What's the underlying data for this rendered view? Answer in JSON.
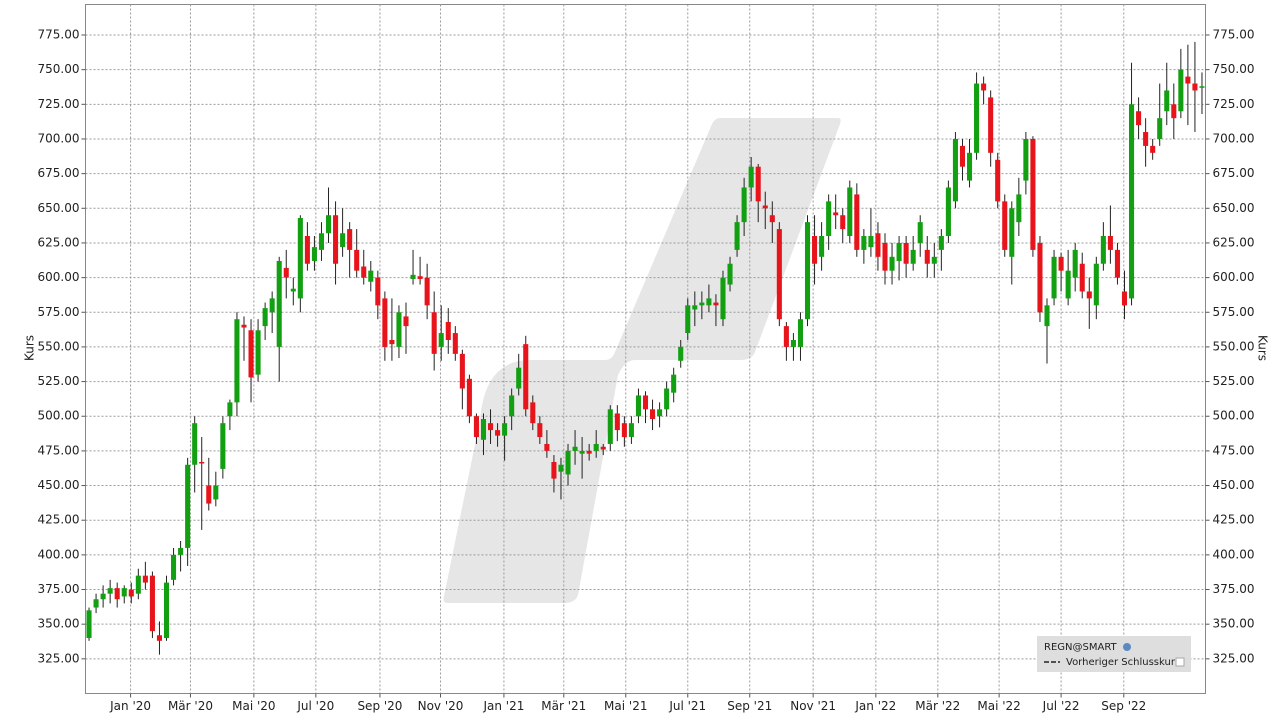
{
  "chart_data": {
    "type": "candlestick",
    "y_label": "Kurs",
    "up_color": "#12a012",
    "down_color": "#e8141b",
    "grid": true,
    "legend": {
      "title": "REGN@SMART",
      "items": [
        "Vorheriger Schlusskurs"
      ],
      "position": "bottom-right"
    },
    "xlim": [
      -0.5,
      158.5
    ],
    "xticks": [
      {
        "value": 5.9,
        "label": "Jan '20"
      },
      {
        "value": 14.4,
        "label": "Mär '20"
      },
      {
        "value": 23.4,
        "label": "Mai '20"
      },
      {
        "value": 32.2,
        "label": "Jul '20"
      },
      {
        "value": 41.3,
        "label": "Sep '20"
      },
      {
        "value": 49.9,
        "label": "Nov '20"
      },
      {
        "value": 58.9,
        "label": "Jan '21"
      },
      {
        "value": 67.4,
        "label": "Mär '21"
      },
      {
        "value": 76.2,
        "label": "Mai '21"
      },
      {
        "value": 85,
        "label": "Jul '21"
      },
      {
        "value": 93.8,
        "label": "Sep '21"
      },
      {
        "value": 102.8,
        "label": "Nov '21"
      },
      {
        "value": 111.7,
        "label": "Jan '22"
      },
      {
        "value": 120.5,
        "label": "Mär '22"
      },
      {
        "value": 129.2,
        "label": "Mai '22"
      },
      {
        "value": 138,
        "label": "Jul '22"
      },
      {
        "value": 146.9,
        "label": "Sep '22"
      }
    ],
    "ylim": [
      300,
      797
    ],
    "yticks": [
      {
        "value": 325,
        "label": "325.00"
      },
      {
        "value": 350,
        "label": "350.00"
      },
      {
        "value": 375,
        "label": "375.00"
      },
      {
        "value": 400,
        "label": "400.00"
      },
      {
        "value": 425,
        "label": "425.00"
      },
      {
        "value": 450,
        "label": "450.00"
      },
      {
        "value": 475,
        "label": "475.00"
      },
      {
        "value": 500,
        "label": "500.00"
      },
      {
        "value": 525,
        "label": "525.00"
      },
      {
        "value": 550,
        "label": "550.00"
      },
      {
        "value": 575,
        "label": "575.00"
      },
      {
        "value": 600,
        "label": "600.00"
      },
      {
        "value": 625,
        "label": "625.00"
      },
      {
        "value": 650,
        "label": "650.00"
      },
      {
        "value": 675,
        "label": "675.00"
      },
      {
        "value": 700,
        "label": "700.00"
      },
      {
        "value": 725,
        "label": "725.00"
      },
      {
        "value": 750,
        "label": "750.00"
      },
      {
        "value": 775,
        "label": "775.00"
      }
    ],
    "candles": [
      [
        340,
        362,
        338,
        360
      ],
      [
        362,
        372,
        358,
        368
      ],
      [
        368,
        378,
        362,
        372
      ],
      [
        372,
        382,
        365,
        376
      ],
      [
        376,
        380,
        362,
        368
      ],
      [
        370,
        378,
        365,
        376
      ],
      [
        375,
        380,
        365,
        370
      ],
      [
        372,
        390,
        368,
        385
      ],
      [
        385,
        395,
        375,
        380
      ],
      [
        385,
        388,
        340,
        345
      ],
      [
        342,
        352,
        328,
        338
      ],
      [
        340,
        385,
        338,
        380
      ],
      [
        382,
        405,
        378,
        400
      ],
      [
        400,
        410,
        388,
        405
      ],
      [
        405,
        470,
        392,
        465
      ],
      [
        465,
        500,
        445,
        495
      ],
      [
        467,
        485,
        418,
        466
      ],
      [
        450,
        470,
        432,
        437
      ],
      [
        440,
        460,
        435,
        450
      ],
      [
        462,
        500,
        455,
        495
      ],
      [
        500,
        512,
        490,
        510
      ],
      [
        510,
        575,
        500,
        570
      ],
      [
        566,
        572,
        540,
        564
      ],
      [
        562,
        570,
        510,
        528
      ],
      [
        530,
        570,
        525,
        562
      ],
      [
        565,
        582,
        555,
        578
      ],
      [
        575,
        590,
        560,
        585
      ],
      [
        550,
        615,
        525,
        612
      ],
      [
        607,
        620,
        585,
        600
      ],
      [
        590,
        600,
        580,
        592
      ],
      [
        585,
        645,
        575,
        643
      ],
      [
        630,
        640,
        605,
        610
      ],
      [
        612,
        630,
        605,
        622
      ],
      [
        620,
        640,
        612,
        632
      ],
      [
        632,
        665,
        625,
        645
      ],
      [
        645,
        655,
        595,
        610
      ],
      [
        622,
        650,
        615,
        632
      ],
      [
        635,
        640,
        600,
        620
      ],
      [
        620,
        635,
        600,
        605
      ],
      [
        608,
        620,
        595,
        600
      ],
      [
        597,
        612,
        590,
        605
      ],
      [
        600,
        605,
        570,
        580
      ],
      [
        585,
        590,
        540,
        550
      ],
      [
        555,
        585,
        540,
        552
      ],
      [
        550,
        580,
        542,
        575
      ],
      [
        572,
        582,
        545,
        565
      ],
      [
        599,
        620,
        595,
        602
      ],
      [
        601,
        615,
        595,
        599
      ],
      [
        600,
        610,
        570,
        580
      ],
      [
        575,
        590,
        533,
        545
      ],
      [
        550,
        580,
        540,
        560
      ],
      [
        568,
        578,
        545,
        555
      ],
      [
        560,
        565,
        540,
        545
      ],
      [
        545,
        548,
        505,
        520
      ],
      [
        527,
        530,
        495,
        500
      ],
      [
        500,
        502,
        480,
        485
      ],
      [
        483,
        502,
        472,
        498
      ],
      [
        495,
        505,
        480,
        490
      ],
      [
        490,
        495,
        478,
        486
      ],
      [
        486,
        500,
        468,
        495
      ],
      [
        500,
        520,
        490,
        515
      ],
      [
        520,
        545,
        515,
        535
      ],
      [
        552,
        558,
        500,
        505
      ],
      [
        510,
        515,
        490,
        495
      ],
      [
        495,
        500,
        480,
        485
      ],
      [
        480,
        490,
        470,
        475
      ],
      [
        467,
        472,
        445,
        455
      ],
      [
        460,
        470,
        440,
        465
      ],
      [
        458,
        480,
        450,
        475
      ],
      [
        475,
        490,
        465,
        478
      ],
      [
        473,
        485,
        455,
        475
      ],
      [
        475,
        480,
        468,
        473
      ],
      [
        475,
        490,
        470,
        480
      ],
      [
        478,
        480,
        472,
        476
      ],
      [
        480,
        508,
        475,
        505
      ],
      [
        502,
        508,
        482,
        490
      ],
      [
        495,
        500,
        478,
        485
      ],
      [
        485,
        500,
        480,
        495
      ],
      [
        500,
        520,
        495,
        515
      ],
      [
        515,
        518,
        495,
        505
      ],
      [
        505,
        512,
        490,
        498
      ],
      [
        500,
        510,
        492,
        505
      ],
      [
        505,
        525,
        500,
        520
      ],
      [
        517,
        535,
        510,
        530
      ],
      [
        540,
        555,
        535,
        550
      ],
      [
        560,
        585,
        555,
        580
      ],
      [
        577,
        590,
        565,
        580
      ],
      [
        580,
        590,
        570,
        582
      ],
      [
        580,
        595,
        575,
        585
      ],
      [
        582,
        588,
        565,
        580
      ],
      [
        570,
        605,
        565,
        600
      ],
      [
        595,
        615,
        590,
        610
      ],
      [
        620,
        645,
        615,
        640
      ],
      [
        640,
        672,
        630,
        665
      ],
      [
        665,
        687,
        655,
        680
      ],
      [
        680,
        682,
        640,
        655
      ],
      [
        652,
        662,
        635,
        650
      ],
      [
        645,
        655,
        625,
        640
      ],
      [
        635,
        640,
        565,
        570
      ],
      [
        565,
        568,
        540,
        550
      ],
      [
        550,
        560,
        540,
        555
      ],
      [
        550,
        575,
        540,
        570
      ],
      [
        570,
        645,
        565,
        640
      ],
      [
        630,
        645,
        595,
        610
      ],
      [
        615,
        640,
        605,
        630
      ],
      [
        630,
        660,
        620,
        655
      ],
      [
        647,
        660,
        635,
        645
      ],
      [
        645,
        650,
        625,
        635
      ],
      [
        630,
        670,
        625,
        665
      ],
      [
        660,
        668,
        615,
        620
      ],
      [
        620,
        635,
        610,
        630
      ],
      [
        622,
        650,
        615,
        630
      ],
      [
        632,
        640,
        605,
        615
      ],
      [
        625,
        632,
        595,
        605
      ],
      [
        605,
        625,
        595,
        615
      ],
      [
        612,
        630,
        598,
        625
      ],
      [
        625,
        630,
        600,
        610
      ],
      [
        610,
        630,
        605,
        620
      ],
      [
        625,
        645,
        615,
        640
      ],
      [
        620,
        630,
        600,
        610
      ],
      [
        610,
        625,
        600,
        615
      ],
      [
        620,
        635,
        605,
        630
      ],
      [
        630,
        670,
        625,
        665
      ],
      [
        655,
        705,
        650,
        700
      ],
      [
        695,
        700,
        670,
        680
      ],
      [
        670,
        700,
        665,
        690
      ],
      [
        690,
        748,
        685,
        740
      ],
      [
        740,
        745,
        725,
        735
      ],
      [
        730,
        735,
        680,
        690
      ],
      [
        685,
        690,
        650,
        655
      ],
      [
        655,
        660,
        615,
        620
      ],
      [
        615,
        655,
        595,
        650
      ],
      [
        640,
        672,
        630,
        660
      ],
      [
        670,
        705,
        660,
        700
      ],
      [
        700,
        702,
        615,
        620
      ],
      [
        625,
        630,
        568,
        575
      ],
      [
        565,
        585,
        538,
        580
      ],
      [
        585,
        620,
        580,
        615
      ],
      [
        615,
        618,
        590,
        605
      ],
      [
        585,
        620,
        580,
        605
      ],
      [
        600,
        625,
        590,
        620
      ],
      [
        610,
        618,
        585,
        590
      ],
      [
        590,
        600,
        563,
        585
      ],
      [
        580,
        615,
        570,
        610
      ],
      [
        610,
        640,
        605,
        630
      ],
      [
        630,
        652,
        610,
        620
      ],
      [
        620,
        625,
        595,
        600
      ],
      [
        590,
        605,
        570,
        580
      ],
      [
        585,
        755,
        580,
        725
      ],
      [
        720,
        730,
        700,
        710
      ],
      [
        705,
        715,
        680,
        695
      ],
      [
        695,
        700,
        685,
        690
      ],
      [
        700,
        740,
        695,
        715
      ],
      [
        720,
        755,
        710,
        735
      ],
      [
        725,
        740,
        700,
        715
      ],
      [
        720,
        765,
        715,
        750
      ],
      [
        745,
        768,
        710,
        740
      ],
      [
        740,
        770,
        705,
        735
      ],
      [
        738,
        748,
        718,
        738
      ]
    ]
  }
}
